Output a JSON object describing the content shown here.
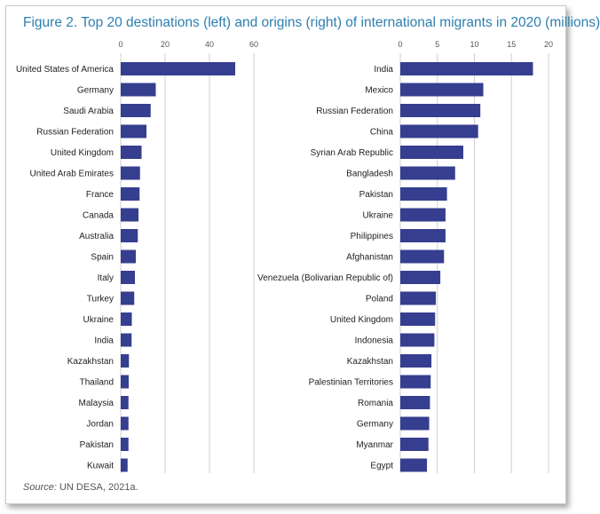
{
  "title": "Figure 2. Top 20 destinations (left) and origins (right) of international migrants in 2020 (millions)",
  "source": {
    "label": "Source:",
    "text": "UN DESA, 2021a."
  },
  "colors": {
    "bar": "#363e8f",
    "grid": "#cfcfcf",
    "tick": "#555555",
    "label": "#222222",
    "title": "#2d7fb0"
  },
  "chart_data": [
    {
      "type": "bar",
      "orientation": "horizontal",
      "title": "Top 20 destinations",
      "xlim": [
        0,
        60
      ],
      "xticks": [
        0,
        20,
        40,
        60
      ],
      "grid": true,
      "categories": [
        "United States of America",
        "Germany",
        "Saudi Arabia",
        "Russian Federation",
        "United Kingdom",
        "United Arab Emirates",
        "France",
        "Canada",
        "Australia",
        "Spain",
        "Italy",
        "Turkey",
        "Ukraine",
        "India",
        "Kazakhstan",
        "Thailand",
        "Malaysia",
        "Jordan",
        "Pakistan",
        "Kuwait"
      ],
      "values": [
        51.6,
        15.8,
        13.5,
        11.6,
        9.4,
        8.7,
        8.5,
        8.0,
        7.7,
        6.8,
        6.4,
        6.1,
        5.0,
        4.9,
        3.7,
        3.6,
        3.5,
        3.5,
        3.5,
        3.1
      ]
    },
    {
      "type": "bar",
      "orientation": "horizontal",
      "title": "Top 20 origins",
      "xlim": [
        0,
        20
      ],
      "xticks": [
        0,
        5,
        10,
        15,
        20
      ],
      "grid": true,
      "categories": [
        "India",
        "Mexico",
        "Russian Federation",
        "China",
        "Syrian Arab Republic",
        "Bangladesh",
        "Pakistan",
        "Ukraine",
        "Philippines",
        "Afghanistan",
        "Venezuela (Bolivarian Republic of)",
        "Poland",
        "United Kingdom",
        "Indonesia",
        "Kazakhstan",
        "Palestinian Territories",
        "Romania",
        "Germany",
        "Myanmar",
        "Egypt"
      ],
      "values": [
        17.9,
        11.2,
        10.8,
        10.5,
        8.5,
        7.4,
        6.3,
        6.1,
        6.1,
        5.9,
        5.4,
        4.8,
        4.7,
        4.6,
        4.2,
        4.1,
        4.0,
        3.9,
        3.8,
        3.6
      ]
    }
  ]
}
